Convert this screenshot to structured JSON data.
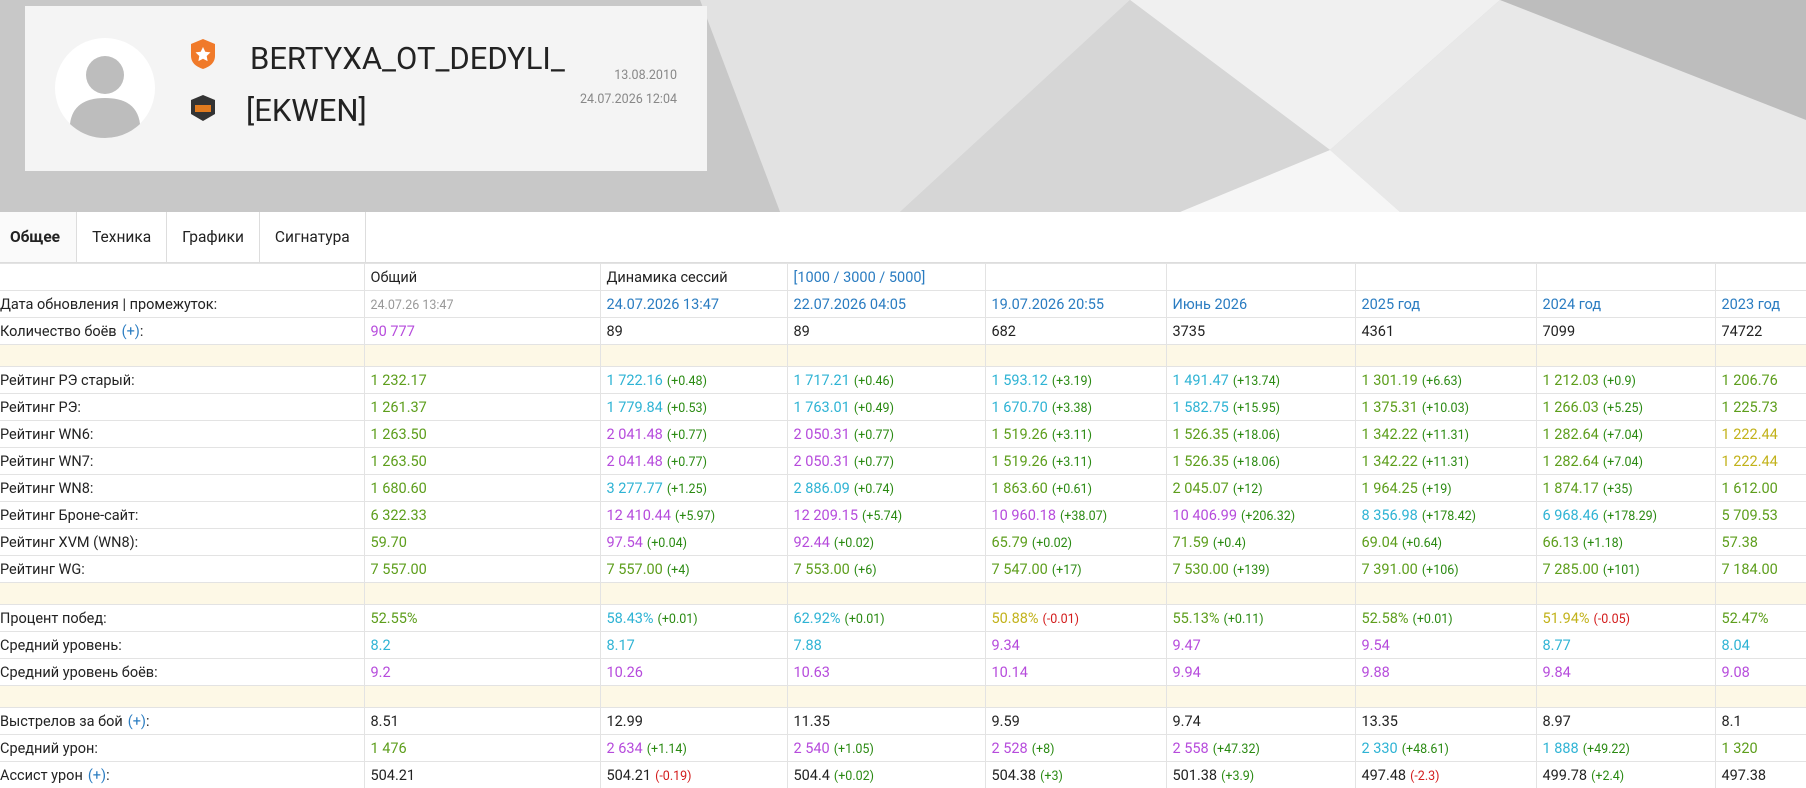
{
  "profile": {
    "name": "BERTYXA_OT_DEDYLI_",
    "clan": "[EKWEN]",
    "registered": "13.08.2010",
    "updated": "24.07.2026 12:04"
  },
  "tabs": [
    "Общее",
    "Техника",
    "Графики",
    "Сигнатура"
  ],
  "table": {
    "columns": [
      "Общий",
      "Динамика сессий",
      "[1000 / 3000 / 5000]"
    ],
    "rows": [
      {
        "label": "Дата обновления | промежуток:",
        "cells": [
          [
            "24.07.26 13:47",
            "grey"
          ],
          [
            "24.07.2026 13:47",
            "blue"
          ],
          [
            "22.07.2026 04:05",
            "blue"
          ],
          [
            "19.07.2026 20:55",
            "blue"
          ],
          [
            "Июнь 2026",
            "blue"
          ],
          [
            "2025 год",
            "blue"
          ],
          [
            "2024 год",
            "blue"
          ],
          [
            "2023 год",
            "blue"
          ]
        ]
      },
      {
        "label": "Количество боёв",
        "link": "(+)",
        "suffix": ":",
        "cells": [
          [
            "90 777",
            "purple"
          ],
          [
            "89",
            "black"
          ],
          [
            "89",
            "black"
          ],
          [
            "682",
            "black"
          ],
          [
            "3735",
            "black"
          ],
          [
            "4361",
            "black"
          ],
          [
            "7099",
            "black"
          ],
          [
            "74722",
            "black"
          ]
        ]
      },
      null,
      {
        "label": "Рейтинг РЭ старый:",
        "cells": [
          [
            "1 232.17",
            "green"
          ],
          [
            "1 722.16",
            "cyan",
            "(+0.48)"
          ],
          [
            "1 717.21",
            "cyan",
            "(+0.46)"
          ],
          [
            "1 593.12",
            "cyan",
            "(+3.19)"
          ],
          [
            "1 491.47",
            "cyan",
            "(+13.74)"
          ],
          [
            "1 301.19",
            "green",
            "(+6.63)"
          ],
          [
            "1 212.03",
            "green",
            "(+0.9)"
          ],
          [
            "1 206.76",
            "green"
          ]
        ]
      },
      {
        "label": "Рейтинг РЭ:",
        "cells": [
          [
            "1 261.37",
            "green"
          ],
          [
            "1 779.84",
            "cyan",
            "(+0.53)"
          ],
          [
            "1 763.01",
            "cyan",
            "(+0.49)"
          ],
          [
            "1 670.70",
            "cyan",
            "(+3.38)"
          ],
          [
            "1 582.75",
            "cyan",
            "(+15.95)"
          ],
          [
            "1 375.31",
            "green",
            "(+10.03)"
          ],
          [
            "1 266.03",
            "green",
            "(+5.25)"
          ],
          [
            "1 225.73",
            "green"
          ]
        ]
      },
      {
        "label": "Рейтинг WN6:",
        "cells": [
          [
            "1 263.50",
            "green"
          ],
          [
            "2 041.48",
            "purple",
            "(+0.77)"
          ],
          [
            "2 050.31",
            "purple",
            "(+0.77)"
          ],
          [
            "1 519.26",
            "green",
            "(+3.11)"
          ],
          [
            "1 526.35",
            "green",
            "(+18.06)"
          ],
          [
            "1 342.22",
            "green",
            "(+11.31)"
          ],
          [
            "1 282.64",
            "green",
            "(+7.04)"
          ],
          [
            "1 222.44",
            "yellow"
          ]
        ]
      },
      {
        "label": "Рейтинг WN7:",
        "cells": [
          [
            "1 263.50",
            "green"
          ],
          [
            "2 041.48",
            "purple",
            "(+0.77)"
          ],
          [
            "2 050.31",
            "purple",
            "(+0.77)"
          ],
          [
            "1 519.26",
            "green",
            "(+3.11)"
          ],
          [
            "1 526.35",
            "green",
            "(+18.06)"
          ],
          [
            "1 342.22",
            "green",
            "(+11.31)"
          ],
          [
            "1 282.64",
            "green",
            "(+7.04)"
          ],
          [
            "1 222.44",
            "yellow"
          ]
        ]
      },
      {
        "label": "Рейтинг WN8:",
        "cells": [
          [
            "1 680.60",
            "green"
          ],
          [
            "3 277.77",
            "cyan",
            "(+1.25)"
          ],
          [
            "2 886.09",
            "cyan",
            "(+0.74)"
          ],
          [
            "1 863.60",
            "green",
            "(+0.61)"
          ],
          [
            "2 045.07",
            "green",
            "(+12)"
          ],
          [
            "1 964.25",
            "green",
            "(+19)"
          ],
          [
            "1 874.17",
            "green",
            "(+35)"
          ],
          [
            "1 612.00",
            "green"
          ]
        ]
      },
      {
        "label": "Рейтинг Броне-сайт:",
        "cells": [
          [
            "6 322.33",
            "green"
          ],
          [
            "12 410.44",
            "purple",
            "(+5.97)"
          ],
          [
            "12 209.15",
            "purple",
            "(+5.74)"
          ],
          [
            "10 960.18",
            "purple",
            "(+38.07)"
          ],
          [
            "10 406.99",
            "purple",
            "(+206.32)"
          ],
          [
            "8 356.98",
            "cyan",
            "(+178.42)"
          ],
          [
            "6 968.46",
            "cyan",
            "(+178.29)"
          ],
          [
            "5 709.53",
            "green"
          ]
        ]
      },
      {
        "label": "Рейтинг XVM (WN8):",
        "cells": [
          [
            "59.70",
            "green"
          ],
          [
            "97.54",
            "purple",
            "(+0.04)"
          ],
          [
            "92.44",
            "purple",
            "(+0.02)"
          ],
          [
            "65.79",
            "green",
            "(+0.02)"
          ],
          [
            "71.59",
            "green",
            "(+0.4)"
          ],
          [
            "69.04",
            "green",
            "(+0.64)"
          ],
          [
            "66.13",
            "green",
            "(+1.18)"
          ],
          [
            "57.38",
            "green"
          ]
        ]
      },
      {
        "label": "Рейтинг WG:",
        "cells": [
          [
            "7 557.00",
            "green"
          ],
          [
            "7 557.00",
            "green",
            "(+4)"
          ],
          [
            "7 553.00",
            "green",
            "(+6)"
          ],
          [
            "7 547.00",
            "green",
            "(+17)"
          ],
          [
            "7 530.00",
            "green",
            "(+139)"
          ],
          [
            "7 391.00",
            "green",
            "(+106)"
          ],
          [
            "7 285.00",
            "green",
            "(+101)"
          ],
          [
            "7 184.00",
            "green"
          ]
        ]
      },
      null,
      {
        "label": "Процент побед:",
        "cells": [
          [
            "52.55%",
            "green"
          ],
          [
            "58.43%",
            "cyan",
            "(+0.01)"
          ],
          [
            "62.92%",
            "cyan",
            "(+0.01)"
          ],
          [
            "50.88%",
            "yellow",
            "(-0.01)"
          ],
          [
            "55.13%",
            "green",
            "(+0.11)"
          ],
          [
            "52.58%",
            "green",
            "(+0.01)"
          ],
          [
            "51.94%",
            "yellow",
            "(-0.05)"
          ],
          [
            "52.47%",
            "green"
          ]
        ]
      },
      {
        "label": "Средний уровень:",
        "cells": [
          [
            "8.2",
            "cyan"
          ],
          [
            "8.17",
            "cyan"
          ],
          [
            "7.88",
            "cyan"
          ],
          [
            "9.34",
            "purple"
          ],
          [
            "9.47",
            "purple"
          ],
          [
            "9.54",
            "purple"
          ],
          [
            "8.77",
            "cyan"
          ],
          [
            "8.04",
            "cyan"
          ]
        ]
      },
      {
        "label": "Средний уровень боёв:",
        "cells": [
          [
            "9.2",
            "purple"
          ],
          [
            "10.26",
            "purple"
          ],
          [
            "10.63",
            "purple"
          ],
          [
            "10.14",
            "purple"
          ],
          [
            "9.94",
            "purple"
          ],
          [
            "9.88",
            "purple"
          ],
          [
            "9.84",
            "purple"
          ],
          [
            "9.08",
            "purple"
          ]
        ]
      },
      null,
      {
        "label": "Выстрелов за бой",
        "link": "(+)",
        "suffix": ":",
        "cells": [
          [
            "8.51",
            "black"
          ],
          [
            "12.99",
            "black"
          ],
          [
            "11.35",
            "black"
          ],
          [
            "9.59",
            "black"
          ],
          [
            "9.74",
            "black"
          ],
          [
            "13.35",
            "black"
          ],
          [
            "8.97",
            "black"
          ],
          [
            "8.1",
            "black"
          ]
        ]
      },
      {
        "label": "Средний урон:",
        "cells": [
          [
            "1 476",
            "green"
          ],
          [
            "2 634",
            "purple",
            "(+1.14)"
          ],
          [
            "2 540",
            "purple",
            "(+1.05)"
          ],
          [
            "2 528",
            "purple",
            "(+8)"
          ],
          [
            "2 558",
            "purple",
            "(+47.32)"
          ],
          [
            "2 330",
            "cyan",
            "(+48.61)"
          ],
          [
            "1 888",
            "cyan",
            "(+49.22)"
          ],
          [
            "1 320",
            "green"
          ]
        ]
      },
      {
        "label": "Ассист урон",
        "link": "(+)",
        "suffix": ":",
        "cells": [
          [
            "504.21",
            "black"
          ],
          [
            "504.21",
            "black",
            "(-0.19)"
          ],
          [
            "504.4",
            "black",
            "(+0.02)"
          ],
          [
            "504.38",
            "black",
            "(+3)"
          ],
          [
            "501.38",
            "black",
            "(+3.9)"
          ],
          [
            "497.48",
            "black",
            "(-2.3)"
          ],
          [
            "499.78",
            "black",
            "(+2.4)"
          ],
          [
            "497.38",
            "black"
          ]
        ]
      }
    ]
  }
}
